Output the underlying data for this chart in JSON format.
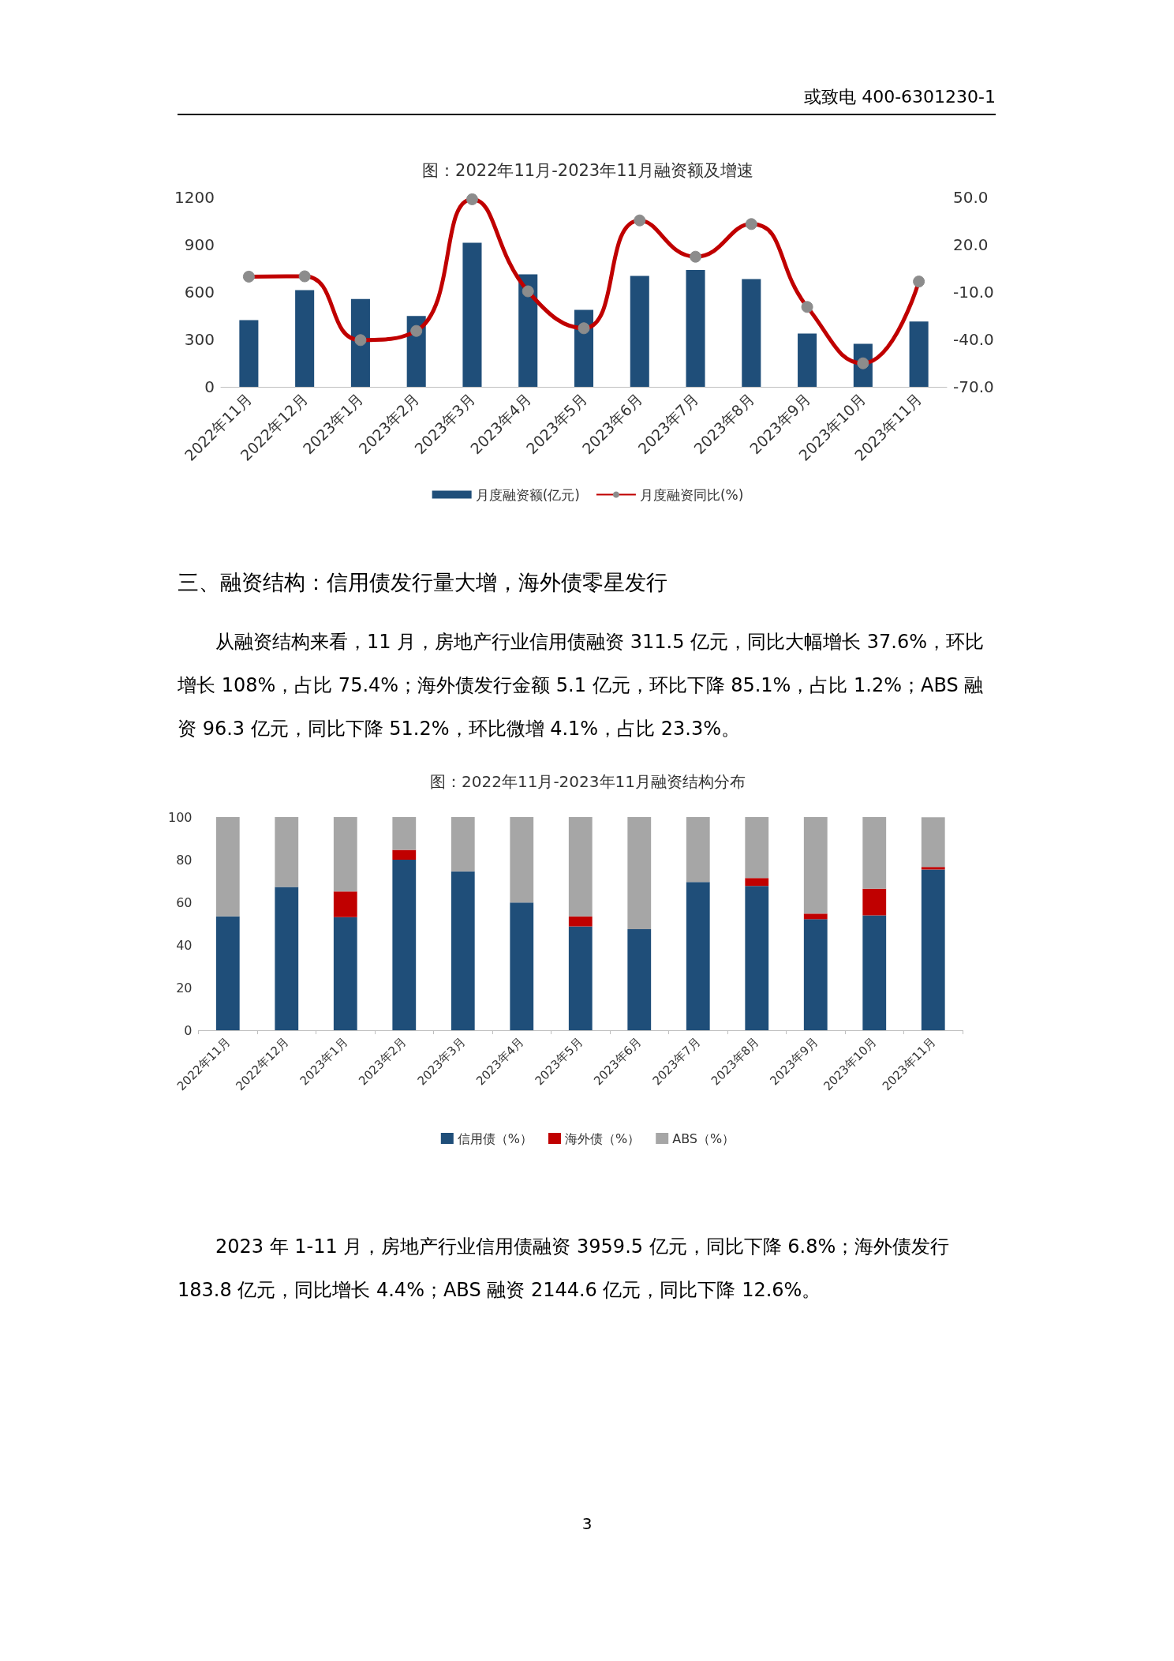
{
  "chart_data": [
    {
      "type": "bar",
      "title": "图：2022年11月-2023年11月融资额及增速",
      "annotations": [
        "或致电 400-6301230-1"
      ],
      "categories": [
        "2022年11月",
        "2022年12月",
        "2023年1月",
        "2023年2月",
        "2023年3月",
        "2023年4月",
        "2023年5月",
        "2023年6月",
        "2023年7月",
        "2023年8月",
        "2023年9月",
        "2023年10月",
        "2023年11月"
      ],
      "series": [
        {
          "name": "月度融资额(亿元)",
          "color": "#1f4e79",
          "values": [
            422,
            613,
            556,
            449,
            912,
            713,
            487,
            702,
            740,
            682,
            337,
            272,
            414
          ]
        },
        {
          "name": "月度融资同比(%)",
          "type": "line",
          "axis": "y2",
          "color": "#c00000",
          "marker": "circle",
          "values": [
            -0.2,
            0,
            -40.4,
            -34.6,
            48.8,
            -9.5,
            -32.9,
            35.4,
            12.4,
            33.1,
            -19.4,
            -55.1,
            -3.3
          ]
        }
      ],
      "ylim": [
        0,
        1200
      ],
      "yticks": [
        0,
        300,
        600,
        900,
        1200
      ],
      "y2lim": [
        -70,
        50
      ],
      "y2ticks": [
        {
          "value": -70,
          "label": "-70.0"
        },
        {
          "value": -40,
          "label": "-40.0"
        },
        {
          "value": -10,
          "label": "-10.0"
        },
        {
          "value": 20,
          "label": "20.0"
        },
        {
          "value": 50,
          "label": "50.0"
        }
      ],
      "legend": "bottom",
      "grid": false
    },
    {
      "type": "bar",
      "title": "图：2022年11月-2023年11月融资结构分布",
      "stacked": true,
      "annotations": [
        "三、融资结构：信用债发行量大增，海外债零星发行",
        "从融资结构来看，11 月，房地产行业信用债融资 311.5 亿元，同比大幅增长 37.6%，环比增长 108%，占比 75.4%；海外债发行金额 5.1 亿元，环比下降 85.1%，占比 1.2%；ABS 融资 96.3 亿元，同比下降 51.2%，环比微增 4.1%，占比 23.3%。",
        "2023 年 1-11 月，房地产行业信用债融资 3959.5 亿元，同比下降 6.8%；海外债发行 183.8 亿元，同比增长 4.4%；ABS 融资 2144.6 亿元，同比下降 12.6%。",
        "3"
      ],
      "categories": [
        "2022年11月",
        "2022年12月",
        "2023年1月",
        "2023年2月",
        "2023年3月",
        "2023年4月",
        "2023年5月",
        "2023年6月",
        "2023年7月",
        "2023年8月",
        "2023年9月",
        "2023年10月",
        "2023年11月"
      ],
      "series": [
        {
          "name": "信用债（%）",
          "color": "#1f4e79",
          "values": [
            53.4,
            67.2,
            53.1,
            80.0,
            74.5,
            59.9,
            48.7,
            47.4,
            69.5,
            67.7,
            52.1,
            53.9,
            75.4
          ]
        },
        {
          "name": "海外债（%）",
          "color": "#c00000",
          "values": [
            0,
            0,
            12.0,
            4.6,
            0,
            0,
            4.7,
            0,
            0,
            3.7,
            2.6,
            12.5,
            1.2
          ]
        },
        {
          "name": "ABS（%）",
          "color": "#a6a6a6",
          "values": [
            46.6,
            32.8,
            34.9,
            15.4,
            25.5,
            40.1,
            46.6,
            52.6,
            30.5,
            28.6,
            45.3,
            33.6,
            23.3
          ]
        }
      ],
      "ylim": [
        0,
        100
      ],
      "yticks": [
        0,
        20,
        40,
        60,
        80,
        100
      ],
      "legend": "bottom",
      "grid": false
    }
  ]
}
